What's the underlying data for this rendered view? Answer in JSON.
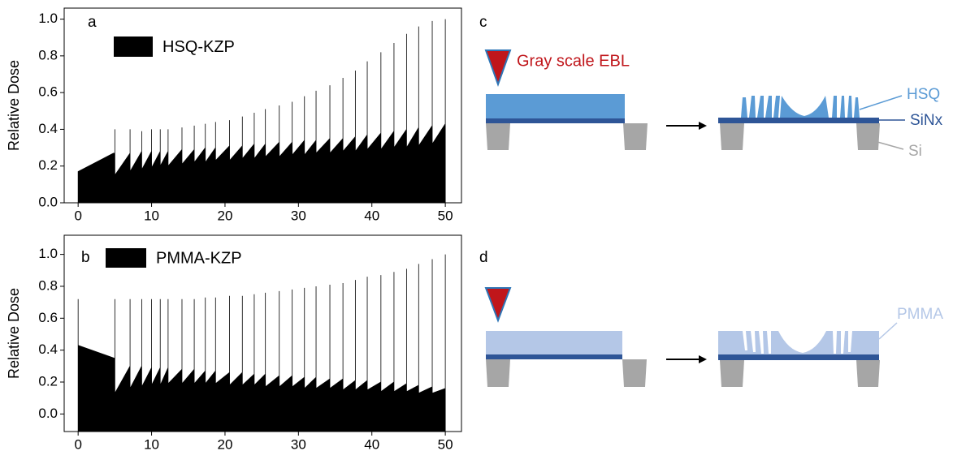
{
  "chart_data": [
    {
      "type": "area",
      "panel": "a",
      "ylabel": "Relative Dose",
      "x": [
        0,
        4.8,
        5,
        5,
        5,
        7.07,
        7.07,
        7.07,
        8.66,
        8.66,
        8.66,
        10,
        10,
        10,
        11.18,
        11.18,
        11.18,
        12.25,
        12.25,
        12.25,
        14.14,
        14.14,
        14.14,
        15.81,
        15.81,
        15.81,
        17.32,
        17.32,
        17.32,
        18.71,
        18.71,
        18.71,
        20.62,
        20.62,
        20.62,
        22.36,
        22.36,
        22.36,
        23.98,
        23.98,
        23.98,
        25.5,
        25.5,
        25.5,
        27.39,
        27.39,
        27.39,
        29.15,
        29.15,
        29.15,
        30.82,
        30.82,
        30.82,
        32.4,
        32.4,
        32.4,
        34.28,
        34.28,
        34.28,
        36.06,
        36.06,
        36.06,
        37.75,
        37.75,
        37.75,
        39.37,
        39.37,
        39.37,
        41.23,
        41.23,
        41.23,
        43.01,
        43.01,
        43.01,
        44.72,
        44.72,
        44.72,
        46.37,
        46.37,
        46.37,
        48.22,
        48.22,
        48.22,
        50,
        50,
        50
      ],
      "series": [
        {
          "name": "HSQ-KZP",
          "color": "#000000",
          "values": [
            0.17,
            0.27,
            0.27,
            0.4,
            0.15,
            0.27,
            0.4,
            0.17,
            0.28,
            0.39,
            0.18,
            0.28,
            0.4,
            0.19,
            0.28,
            0.4,
            0.2,
            0.28,
            0.4,
            0.2,
            0.29,
            0.41,
            0.21,
            0.29,
            0.42,
            0.22,
            0.3,
            0.43,
            0.22,
            0.3,
            0.44,
            0.23,
            0.31,
            0.45,
            0.23,
            0.31,
            0.47,
            0.24,
            0.32,
            0.49,
            0.24,
            0.32,
            0.51,
            0.25,
            0.33,
            0.53,
            0.25,
            0.33,
            0.55,
            0.26,
            0.34,
            0.58,
            0.26,
            0.34,
            0.61,
            0.27,
            0.35,
            0.64,
            0.27,
            0.35,
            0.68,
            0.28,
            0.36,
            0.72,
            0.28,
            0.37,
            0.77,
            0.29,
            0.38,
            0.82,
            0.29,
            0.39,
            0.87,
            0.3,
            0.4,
            0.92,
            0.3,
            0.41,
            0.96,
            0.31,
            0.42,
            0.99,
            0.32,
            0.43,
            1.0,
            0.33
          ]
        }
      ],
      "xlim": [
        -1.9,
        52.2
      ],
      "xticks": [
        0,
        10,
        20,
        30,
        40,
        50
      ],
      "ylim": [
        0,
        1.06
      ],
      "yticks": [
        {
          "value": 0,
          "label": "0.0"
        },
        0.2,
        0.4,
        0.6,
        0.8,
        {
          "value": 1,
          "label": "1.0"
        }
      ]
    },
    {
      "type": "area",
      "panel": "b",
      "ylabel": "Relative Dose",
      "x": [
        0,
        0,
        4.9,
        5,
        5,
        5,
        7.07,
        7.07,
        7.07,
        8.66,
        8.66,
        8.66,
        10,
        10,
        10,
        11.18,
        11.18,
        11.18,
        12.25,
        12.25,
        12.25,
        14.14,
        14.14,
        14.14,
        15.81,
        15.81,
        15.81,
        17.32,
        17.32,
        17.32,
        18.71,
        18.71,
        18.71,
        20.62,
        20.62,
        20.62,
        22.36,
        22.36,
        22.36,
        23.98,
        23.98,
        23.98,
        25.5,
        25.5,
        25.5,
        27.39,
        27.39,
        27.39,
        29.15,
        29.15,
        29.15,
        30.82,
        30.82,
        30.82,
        32.4,
        32.4,
        32.4,
        34.28,
        34.28,
        34.28,
        36.06,
        36.06,
        36.06,
        37.75,
        37.75,
        37.75,
        39.37,
        39.37,
        39.37,
        41.23,
        41.23,
        41.23,
        43.01,
        43.01,
        43.01,
        44.72,
        44.72,
        44.72,
        46.37,
        46.37,
        46.37,
        48.22,
        48.22,
        48.22,
        50,
        50,
        50
      ],
      "series": [
        {
          "name": "PMMA-KZP",
          "color": "#000000",
          "values": [
            0.72,
            0.43,
            0.35,
            0.35,
            0.72,
            0.13,
            0.3,
            0.72,
            0.16,
            0.3,
            0.72,
            0.17,
            0.29,
            0.72,
            0.18,
            0.29,
            0.72,
            0.18,
            0.29,
            0.72,
            0.19,
            0.28,
            0.72,
            0.19,
            0.28,
            0.72,
            0.19,
            0.27,
            0.73,
            0.19,
            0.27,
            0.73,
            0.19,
            0.26,
            0.74,
            0.18,
            0.26,
            0.74,
            0.18,
            0.25,
            0.75,
            0.18,
            0.25,
            0.76,
            0.17,
            0.24,
            0.77,
            0.17,
            0.24,
            0.78,
            0.17,
            0.23,
            0.79,
            0.16,
            0.23,
            0.8,
            0.16,
            0.22,
            0.81,
            0.16,
            0.22,
            0.82,
            0.15,
            0.21,
            0.84,
            0.15,
            0.21,
            0.86,
            0.15,
            0.2,
            0.87,
            0.14,
            0.2,
            0.89,
            0.14,
            0.19,
            0.91,
            0.14,
            0.18,
            0.94,
            0.13,
            0.17,
            0.97,
            0.13,
            0.16,
            1.0,
            0.12
          ]
        }
      ],
      "xlim": [
        -1.9,
        52.2
      ],
      "xticks": [
        0,
        10,
        20,
        30,
        40,
        50
      ],
      "ylim": [
        -0.11,
        1.12
      ],
      "yticks": [
        {
          "value": 0,
          "label": "0.0"
        },
        0.2,
        0.4,
        0.6,
        0.8,
        {
          "value": 1,
          "label": "1.0"
        }
      ]
    }
  ],
  "diagrams": [
    {
      "panel": "c",
      "beam_label": "Gray scale EBL",
      "resist_label": "HSQ",
      "membrane_label": "SiNx",
      "substrate_label": "Si"
    },
    {
      "panel": "d",
      "resist_label": "PMMA"
    }
  ]
}
